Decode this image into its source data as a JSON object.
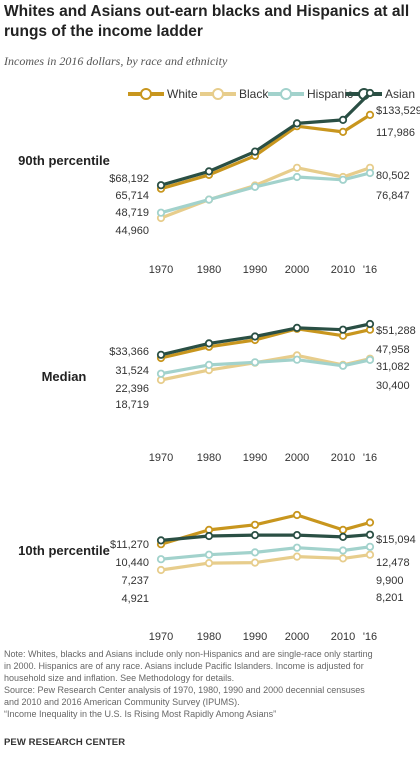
{
  "title": "Whites and Asians out-earn blacks and Hispanics at all rungs of the income ladder",
  "subtitle": "Incomes in 2016 dollars, by race and ethnicity",
  "legend": [
    {
      "name": "White",
      "color": "#c8961e"
    },
    {
      "name": "Black",
      "color": "#e7cd8c"
    },
    {
      "name": "Hispanic",
      "color": "#a2d2cc"
    },
    {
      "name": "Asian",
      "color": "#2a4f44"
    }
  ],
  "x_tick_labels": [
    "1970",
    "1980",
    "1990",
    "2000",
    "2010",
    "'16"
  ],
  "chart_data": [
    {
      "type": "line",
      "title": "90th percentile",
      "x": [
        1970,
        1980,
        1990,
        2000,
        2010,
        2016
      ],
      "series": [
        {
          "name": "White",
          "color": "#c8961e",
          "values": [
            65714,
            75500,
            89000,
            110000,
            106000,
            117986
          ]
        },
        {
          "name": "Black",
          "color": "#e7cd8c",
          "values": [
            44960,
            58000,
            68000,
            80500,
            74000,
            80502
          ]
        },
        {
          "name": "Hispanic",
          "color": "#a2d2cc",
          "values": [
            48719,
            58000,
            67000,
            74000,
            72000,
            76847
          ]
        },
        {
          "name": "Asian",
          "color": "#2a4f44",
          "values": [
            68192,
            78000,
            92000,
            112000,
            114500,
            133529
          ]
        }
      ],
      "labels_1970": [
        "$68,192",
        "65,714",
        "48,719",
        "44,960"
      ],
      "labels_2016": [
        "$133,529",
        "117,986",
        "80,502",
        "76,847"
      ]
    },
    {
      "type": "line",
      "title": "Median",
      "x": [
        1970,
        1980,
        1990,
        2000,
        2010,
        2016
      ],
      "series": [
        {
          "name": "White",
          "color": "#c8961e",
          "values": [
            31524,
            38000,
            42000,
            48500,
            44500,
            47958
          ]
        },
        {
          "name": "Black",
          "color": "#e7cd8c",
          "values": [
            18719,
            24500,
            28800,
            33000,
            27500,
            31082
          ]
        },
        {
          "name": "Hispanic",
          "color": "#a2d2cc",
          "values": [
            22396,
            27500,
            29000,
            30500,
            27000,
            30400
          ]
        },
        {
          "name": "Asian",
          "color": "#2a4f44",
          "values": [
            33366,
            40000,
            44000,
            49000,
            48000,
            51288
          ]
        }
      ],
      "labels_1970": [
        "$33,366",
        "31,524",
        "22,396",
        "18,719"
      ],
      "labels_2016": [
        "$51,288",
        "47,958",
        "31,082",
        "30,400"
      ]
    },
    {
      "type": "line",
      "title": "10th percentile",
      "x": [
        1970,
        1980,
        1990,
        2000,
        2010,
        2016
      ],
      "series": [
        {
          "name": "White",
          "color": "#c8961e",
          "values": [
            10440,
            13500,
            14600,
            16700,
            13500,
            15094
          ]
        },
        {
          "name": "Black",
          "color": "#e7cd8c",
          "values": [
            4921,
            6400,
            6500,
            7800,
            7400,
            8201
          ]
        },
        {
          "name": "Hispanic",
          "color": "#a2d2cc",
          "values": [
            7237,
            8200,
            8700,
            9700,
            9100,
            9900
          ]
        },
        {
          "name": "Asian",
          "color": "#2a4f44",
          "values": [
            11270,
            12200,
            12400,
            12400,
            12000,
            12478
          ]
        }
      ],
      "labels_1970": [
        "$11,270",
        "10,440",
        "7,237",
        "4,921"
      ],
      "labels_2016": [
        "$15,094",
        "12,478",
        "9,900",
        "8,201"
      ]
    }
  ],
  "note_lines": [
    "Note: Whites, blacks and Asians include only non-Hispanics and are single-race only starting",
    "in 2000. Hispanics are of any race. Asians include Pacific Islanders. Income is adjusted for",
    "household size and inflation. See Methodology for details.",
    "Source: Pew Research Center analysis of 1970, 1980, 1990 and 2000 decennial censuses",
    "and 2010 and 2016 American Community Survey (IPUMS).",
    "“Income Inequality in the U.S. Is Rising Most Rapidly Among Asians”"
  ],
  "brand": "PEW RESEARCH CENTER"
}
